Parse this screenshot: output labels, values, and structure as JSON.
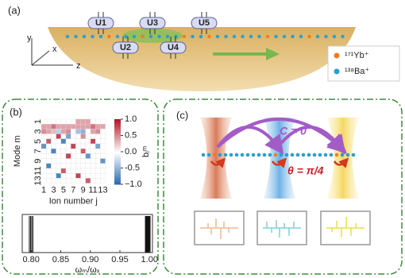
{
  "panel_a": {
    "label": "(a)",
    "traps": [
      "U1",
      "U3",
      "U5",
      "U2",
      "U4"
    ],
    "axes": [
      "y",
      "x",
      "z"
    ],
    "legend": [
      "¹⁷¹Yb⁺",
      "¹³⁸Ba⁺"
    ]
  },
  "panel_b": {
    "label": "(b)",
    "ylabel": "Mode m",
    "xlabel": "Ion number j",
    "colorbar_label": "bⱼᵐ",
    "mode_ticks": [
      1,
      3,
      5,
      7,
      9,
      11,
      13
    ],
    "ion_ticks": [
      1,
      3,
      5,
      7,
      9,
      11,
      13
    ],
    "colorbar_ticks": [
      {
        "value": 1,
        "label": "1.0"
      },
      0.5,
      {
        "value": 0,
        "label": "0.0"
      },
      -0.5,
      {
        "value": -1,
        "label": "−1.0"
      }
    ],
    "matrix": [
      [
        0,
        0,
        0,
        0,
        0,
        0,
        0,
        0.4,
        0.4,
        0.4,
        0,
        0,
        0
      ],
      [
        0.4,
        0.4,
        0.6,
        0.4,
        0.4,
        0.4,
        0.4,
        0.4,
        0.4,
        0.4,
        0.6,
        0.4,
        0.4
      ],
      [
        0.5,
        0.4,
        0.3,
        -0.3,
        0.4,
        0.5,
        0,
        -0.4,
        -0.5,
        0,
        0.4,
        0.5,
        0
      ],
      [
        0,
        0,
        0,
        0.8,
        0,
        -0.6,
        0,
        0,
        0.5,
        0,
        0,
        0,
        0
      ],
      [
        0,
        0.7,
        0,
        0,
        -0.8,
        0,
        0,
        0,
        0,
        0,
        0.8,
        0,
        0
      ],
      [
        -0.7,
        0,
        0,
        0,
        0,
        0,
        0.8,
        0,
        0,
        0,
        0,
        -0.6,
        0
      ],
      [
        0,
        0,
        -0.8,
        0,
        0,
        0,
        0,
        0,
        0.7,
        0,
        0,
        0,
        0
      ],
      [
        0,
        0,
        0,
        0,
        0,
        0.8,
        0,
        0,
        0,
        -0.7,
        0,
        0,
        0
      ],
      [
        0,
        0,
        0,
        0,
        0,
        0,
        0,
        0,
        0,
        0,
        0,
        0,
        -0.7
      ],
      [
        0,
        -0.8,
        0,
        0,
        0,
        0,
        0,
        0,
        0,
        0,
        0,
        0,
        0
      ],
      [
        0,
        0,
        0,
        0,
        0.7,
        0,
        0,
        0,
        0,
        0,
        0,
        0,
        0
      ],
      [
        0,
        0,
        0,
        -0.8,
        0,
        0,
        0,
        0.8,
        0,
        0,
        0,
        0,
        0
      ],
      [
        0,
        0,
        0,
        0,
        0,
        0,
        0,
        0,
        0,
        0.7,
        0,
        0,
        0
      ]
    ],
    "freq_xlim": [
      0.785,
      1.005
    ],
    "freq_ticks": [
      {
        "value": 0.8,
        "label": "0.80"
      },
      0.85,
      {
        "value": 0.9,
        "label": "0.90"
      },
      0.95,
      {
        "value": 1,
        "label": "1.00"
      }
    ],
    "freq_label": "ωₘ/ωₓ",
    "frequencies": [
      0.797,
      0.799,
      0.801,
      0.803,
      0.993,
      0.994,
      0.995,
      0.996,
      0.997,
      0.998,
      0.999,
      1.0,
      1.001
    ]
  },
  "panel_c": {
    "label": "(c)",
    "coupling": "C = 0",
    "angle": "θ = π/4"
  }
}
